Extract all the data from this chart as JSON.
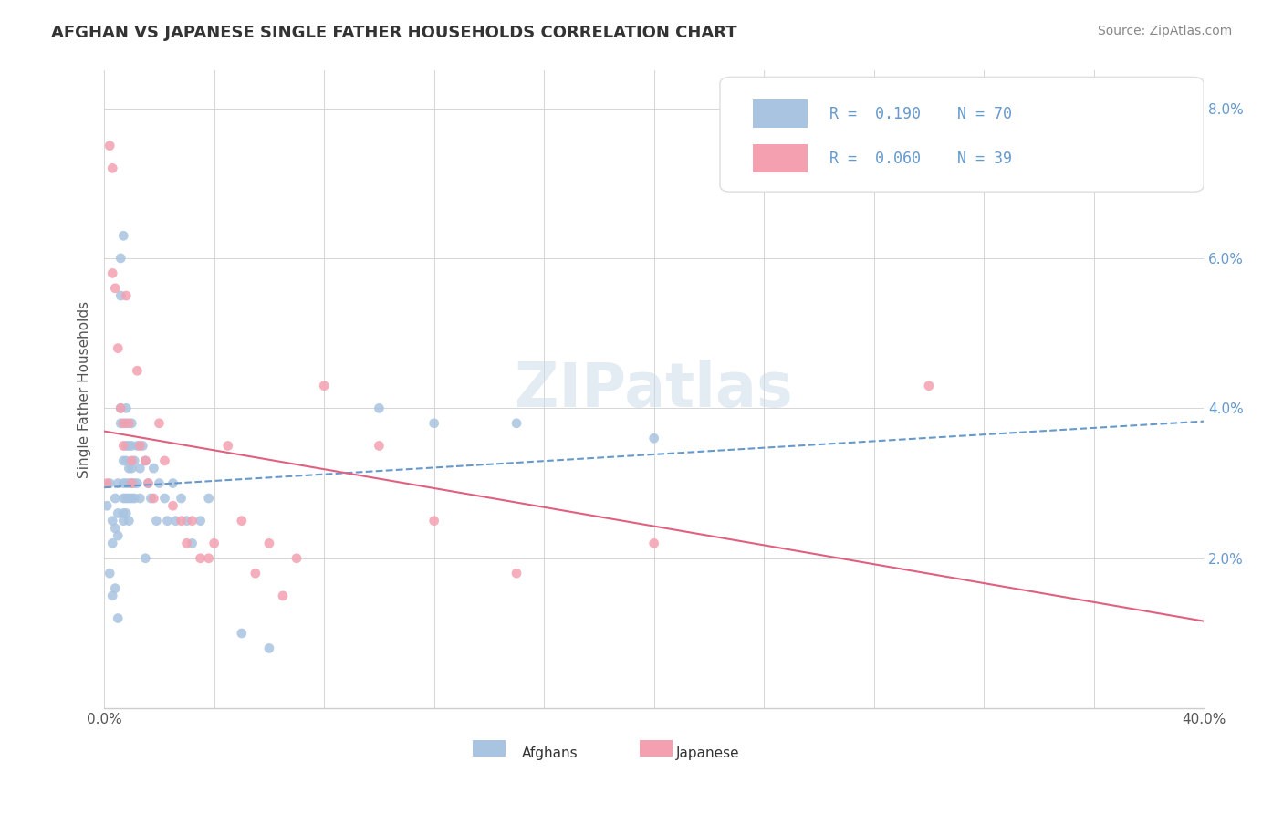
{
  "title": "AFGHAN VS JAPANESE SINGLE FATHER HOUSEHOLDS CORRELATION CHART",
  "source": "Source: ZipAtlas.com",
  "xlabel": "",
  "ylabel": "Single Father Households",
  "xlim": [
    0.0,
    0.4
  ],
  "ylim": [
    0.0,
    0.085
  ],
  "xticks": [
    0.0,
    0.04,
    0.08,
    0.12,
    0.16,
    0.2,
    0.24,
    0.28,
    0.32,
    0.36,
    0.4
  ],
  "yticks": [
    0.0,
    0.02,
    0.04,
    0.06,
    0.08
  ],
  "ytick_labels": [
    "",
    "2.0%",
    "4.0%",
    "6.0%",
    "8.0%"
  ],
  "xtick_labels": [
    "0.0%",
    "",
    "",
    "",
    "",
    "",
    "",
    "",
    "",
    "",
    "40.0%"
  ],
  "watermark": "ZIPatlas",
  "legend_R1": "R =  0.190",
  "legend_N1": "N = 70",
  "legend_R2": "R =  0.060",
  "legend_N2": "N = 39",
  "afghan_color": "#a8c4e0",
  "japanese_color": "#f4a0b0",
  "afghan_line_color": "#6699cc",
  "japanese_line_color": "#e06080",
  "background_color": "#ffffff",
  "grid_color": "#cccccc",
  "title_color": "#333333",
  "afghan_scatter": [
    [
      0.001,
      0.027
    ],
    [
      0.002,
      0.03
    ],
    [
      0.003,
      0.025
    ],
    [
      0.003,
      0.022
    ],
    [
      0.004,
      0.028
    ],
    [
      0.004,
      0.024
    ],
    [
      0.005,
      0.03
    ],
    [
      0.005,
      0.026
    ],
    [
      0.005,
      0.023
    ],
    [
      0.006,
      0.06
    ],
    [
      0.006,
      0.055
    ],
    [
      0.006,
      0.04
    ],
    [
      0.006,
      0.038
    ],
    [
      0.007,
      0.063
    ],
    [
      0.007,
      0.033
    ],
    [
      0.007,
      0.03
    ],
    [
      0.007,
      0.028
    ],
    [
      0.007,
      0.026
    ],
    [
      0.007,
      0.025
    ],
    [
      0.008,
      0.04
    ],
    [
      0.008,
      0.038
    ],
    [
      0.008,
      0.035
    ],
    [
      0.008,
      0.033
    ],
    [
      0.008,
      0.03
    ],
    [
      0.008,
      0.028
    ],
    [
      0.008,
      0.026
    ],
    [
      0.009,
      0.035
    ],
    [
      0.009,
      0.032
    ],
    [
      0.009,
      0.03
    ],
    [
      0.009,
      0.028
    ],
    [
      0.009,
      0.025
    ],
    [
      0.01,
      0.038
    ],
    [
      0.01,
      0.035
    ],
    [
      0.01,
      0.032
    ],
    [
      0.01,
      0.03
    ],
    [
      0.01,
      0.028
    ],
    [
      0.011,
      0.033
    ],
    [
      0.011,
      0.03
    ],
    [
      0.011,
      0.028
    ],
    [
      0.012,
      0.035
    ],
    [
      0.012,
      0.03
    ],
    [
      0.013,
      0.032
    ],
    [
      0.013,
      0.028
    ],
    [
      0.014,
      0.035
    ],
    [
      0.015,
      0.033
    ],
    [
      0.015,
      0.02
    ],
    [
      0.016,
      0.03
    ],
    [
      0.017,
      0.028
    ],
    [
      0.018,
      0.032
    ],
    [
      0.019,
      0.025
    ],
    [
      0.02,
      0.03
    ],
    [
      0.022,
      0.028
    ],
    [
      0.023,
      0.025
    ],
    [
      0.025,
      0.03
    ],
    [
      0.026,
      0.025
    ],
    [
      0.028,
      0.028
    ],
    [
      0.03,
      0.025
    ],
    [
      0.032,
      0.022
    ],
    [
      0.035,
      0.025
    ],
    [
      0.038,
      0.028
    ],
    [
      0.002,
      0.018
    ],
    [
      0.003,
      0.015
    ],
    [
      0.004,
      0.016
    ],
    [
      0.05,
      0.01
    ],
    [
      0.06,
      0.008
    ],
    [
      0.005,
      0.012
    ],
    [
      0.1,
      0.04
    ],
    [
      0.12,
      0.038
    ],
    [
      0.15,
      0.038
    ],
    [
      0.2,
      0.036
    ]
  ],
  "japanese_scatter": [
    [
      0.001,
      0.03
    ],
    [
      0.002,
      0.075
    ],
    [
      0.003,
      0.072
    ],
    [
      0.003,
      0.058
    ],
    [
      0.004,
      0.056
    ],
    [
      0.005,
      0.048
    ],
    [
      0.006,
      0.04
    ],
    [
      0.007,
      0.038
    ],
    [
      0.007,
      0.035
    ],
    [
      0.008,
      0.055
    ],
    [
      0.009,
      0.038
    ],
    [
      0.01,
      0.033
    ],
    [
      0.01,
      0.03
    ],
    [
      0.012,
      0.045
    ],
    [
      0.013,
      0.035
    ],
    [
      0.015,
      0.033
    ],
    [
      0.016,
      0.03
    ],
    [
      0.018,
      0.028
    ],
    [
      0.02,
      0.038
    ],
    [
      0.022,
      0.033
    ],
    [
      0.025,
      0.027
    ],
    [
      0.028,
      0.025
    ],
    [
      0.03,
      0.022
    ],
    [
      0.032,
      0.025
    ],
    [
      0.035,
      0.02
    ],
    [
      0.038,
      0.02
    ],
    [
      0.04,
      0.022
    ],
    [
      0.045,
      0.035
    ],
    [
      0.05,
      0.025
    ],
    [
      0.055,
      0.018
    ],
    [
      0.06,
      0.022
    ],
    [
      0.065,
      0.015
    ],
    [
      0.07,
      0.02
    ],
    [
      0.08,
      0.043
    ],
    [
      0.1,
      0.035
    ],
    [
      0.12,
      0.025
    ],
    [
      0.15,
      0.018
    ],
    [
      0.2,
      0.022
    ],
    [
      0.3,
      0.043
    ]
  ],
  "R_afghan": 0.19,
  "R_japanese": 0.06
}
